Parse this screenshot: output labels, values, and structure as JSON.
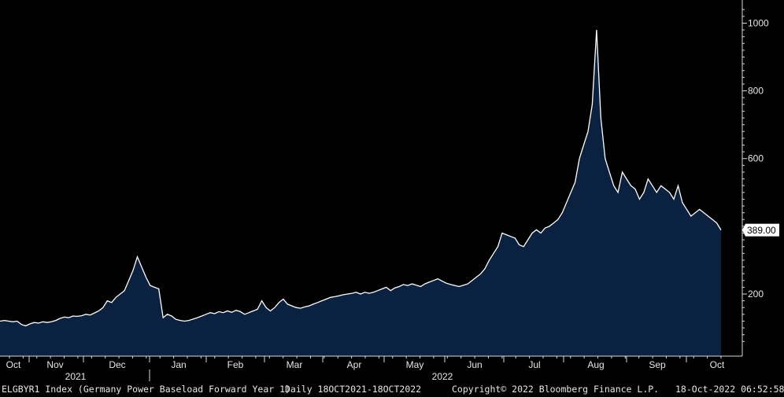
{
  "chart_data": {
    "type": "area",
    "ticker": "ELGBYR1 Index",
    "title": "ELGBYR1 Index (Germany Power Baseload Forward Year 1)",
    "x_tick_labels": [
      "Oct",
      "Nov",
      "Dec",
      "Jan",
      "Feb",
      "Mar",
      "Apr",
      "May",
      "Jun",
      "Jul",
      "Aug",
      "Sep",
      "Oct"
    ],
    "year_labels": [
      "2021",
      "2022"
    ],
    "y_ticks": [
      200,
      400,
      600,
      800,
      1000
    ],
    "y_tick_labels": [
      "200",
      "",
      "600",
      "800",
      "1000"
    ],
    "ylim": [
      40,
      1050
    ],
    "last_value": 389.0,
    "last_value_label": "389.00",
    "series": [
      {
        "x_start": "2021-10-18",
        "x_end": "2022-10-18",
        "values": [
          120,
          122,
          120,
          118,
          120,
          110,
          106,
          112,
          116,
          114,
          118,
          116,
          118,
          122,
          128,
          132,
          130,
          135,
          134,
          136,
          140,
          138,
          144,
          150,
          160,
          180,
          175,
          190,
          200,
          210,
          240,
          270,
          310,
          280,
          250,
          225,
          220,
          215,
          130,
          140,
          135,
          125,
          122,
          120,
          122,
          126,
          130,
          135,
          140,
          145,
          142,
          148,
          145,
          150,
          146,
          152,
          148,
          140,
          145,
          150,
          155,
          180,
          160,
          150,
          160,
          175,
          185,
          170,
          165,
          160,
          158,
          162,
          165,
          170,
          175,
          180,
          185,
          190,
          192,
          195,
          198,
          200,
          202,
          205,
          200,
          205,
          202,
          205,
          210,
          215,
          220,
          210,
          218,
          222,
          228,
          225,
          230,
          226,
          222,
          230,
          235,
          240,
          245,
          238,
          232,
          228,
          225,
          222,
          226,
          230,
          240,
          250,
          260,
          275,
          300,
          320,
          340,
          380,
          375,
          370,
          365,
          345,
          340,
          360,
          380,
          390,
          380,
          395,
          400,
          410,
          420,
          440,
          470,
          500,
          530,
          600,
          640,
          680,
          760,
          980,
          720,
          600,
          560,
          520,
          500,
          560,
          540,
          520,
          510,
          480,
          500,
          540,
          520,
          500,
          520,
          510,
          500,
          480,
          520,
          470,
          450,
          430,
          440,
          450,
          440,
          430,
          420,
          410,
          389
        ]
      }
    ]
  },
  "last_value_tag": "389.00",
  "footer": {
    "index_description": "ELGBYR1 Index (Germany Power Baseload Forward Year 1)",
    "range": "Daily 18OCT2021-18OCT2022",
    "copyright": "Copyright© 2022 Bloomberg Finance L.P.",
    "timestamp": "18-Oct-2022 06:52:58"
  },
  "colors": {
    "background": "#000000",
    "area_fill": "#0b2140",
    "line": "#ffffff",
    "axis": "#d9d9d9",
    "text": "#e6e6e6",
    "tag_bg": "#ffffff",
    "tag_text": "#000000"
  }
}
